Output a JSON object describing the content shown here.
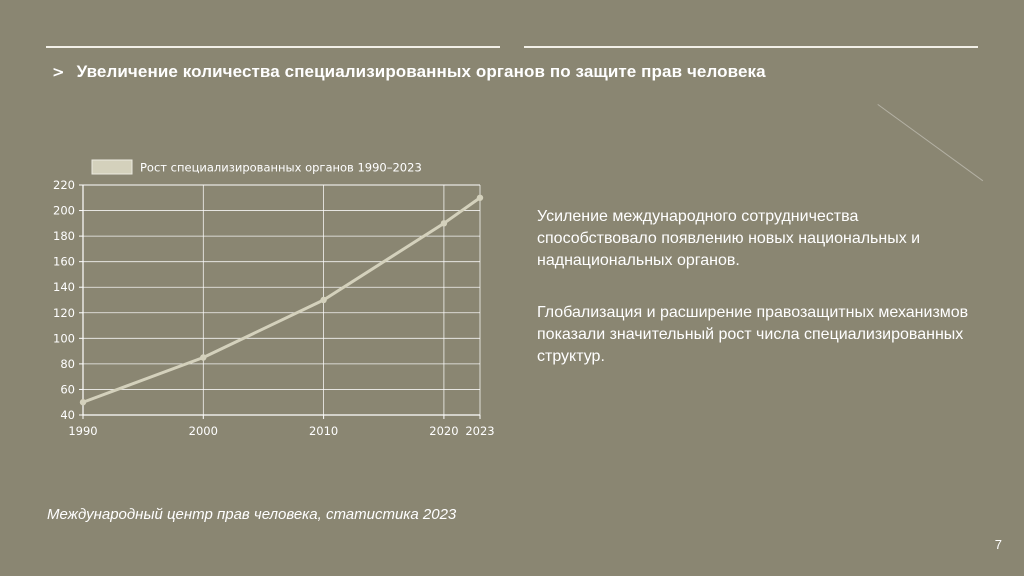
{
  "slide": {
    "chevron": ">",
    "title": "Увеличение количества специализированных органов по защите прав человека",
    "paragraph1": "Усиление международного сотрудничества способствовало появлению новых национальных и наднациональных органов.",
    "paragraph2": "Глобализация и расширение правозащитных механизмов показали значительный рост числа специализированных структур.",
    "source": "Международный центр прав человека, статистика 2023",
    "page_number": "7"
  },
  "colors": {
    "background": "#8a8672",
    "line": "#d4d1bc",
    "axis_text": "#ffffff",
    "grid": "#ffffff"
  },
  "chart_data": {
    "type": "line",
    "categories": [
      "1990",
      "2000",
      "2010",
      "2020",
      "2023"
    ],
    "series": [
      {
        "name": "Рост специализированных органов 1990–2023",
        "values": [
          50,
          85,
          130,
          190,
          210
        ]
      }
    ],
    "yticks": [
      40,
      60,
      80,
      100,
      120,
      140,
      160,
      180,
      200,
      220
    ],
    "ylim": [
      40,
      220
    ],
    "grid": true,
    "legend": "top-left",
    "title": "",
    "xlabel": "",
    "ylabel": ""
  }
}
